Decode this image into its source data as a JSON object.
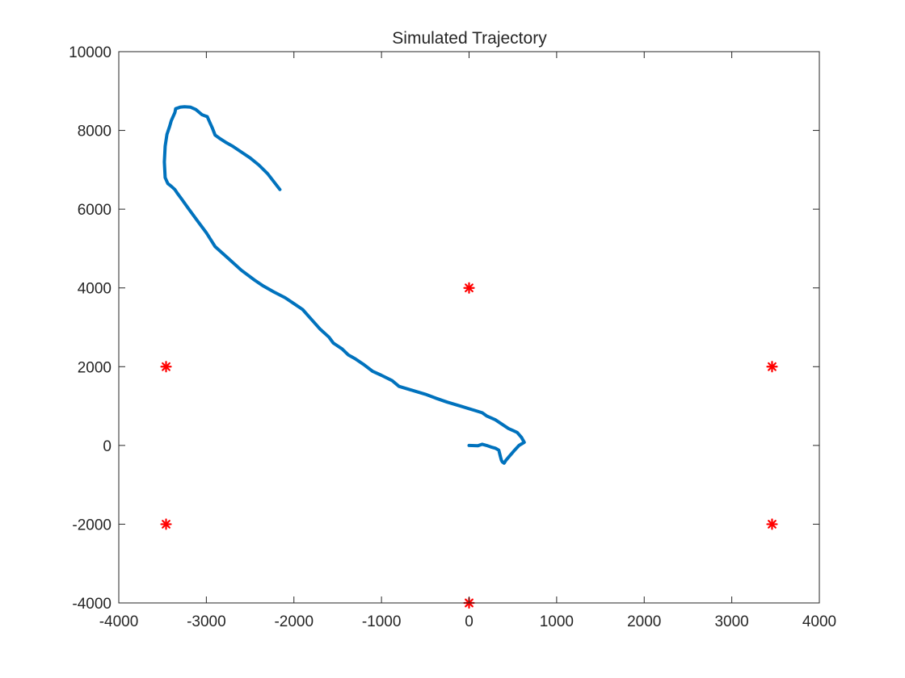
{
  "chart_data": {
    "type": "line",
    "title": "Simulated Trajectory",
    "xlabel": "",
    "ylabel": "",
    "xlim": [
      -4000,
      4000
    ],
    "ylim": [
      -4000,
      10000
    ],
    "xticks": [
      -4000,
      -3000,
      -2000,
      -1000,
      0,
      1000,
      2000,
      3000,
      4000
    ],
    "yticks": [
      -4000,
      -2000,
      0,
      2000,
      4000,
      6000,
      8000,
      10000
    ],
    "grid": false,
    "series": [
      {
        "kind": "line",
        "color": "#0072BD",
        "x": [
          0,
          100,
          150,
          200,
          250,
          300,
          340,
          360,
          370,
          380,
          400,
          420,
          470,
          520,
          570,
          630,
          600,
          550,
          500,
          450,
          300,
          200,
          150,
          50,
          -100,
          -250,
          -380,
          -500,
          -650,
          -800,
          -880,
          -1000,
          -1100,
          -1200,
          -1300,
          -1380,
          -1450,
          -1550,
          -1600,
          -1700,
          -1800,
          -1900,
          -2000,
          -2100,
          -2230,
          -2350,
          -2450,
          -2600,
          -2750,
          -2900,
          -3000,
          -3100,
          -3200,
          -3280,
          -3330,
          -3360,
          -3400,
          -3440,
          -3470,
          -3480,
          -3470,
          -3450,
          -3420,
          -3400,
          -3380,
          -3360,
          -3350,
          -3300,
          -3250,
          -3180,
          -3120,
          -3050,
          -2990,
          -2960,
          -2930,
          -2900,
          -2850,
          -2780,
          -2700,
          -2600,
          -2500,
          -2400,
          -2300,
          -2160
        ],
        "y": [
          0,
          -10,
          30,
          0,
          -40,
          -70,
          -120,
          -300,
          -380,
          -420,
          -450,
          -380,
          -250,
          -120,
          0,
          80,
          200,
          330,
          380,
          430,
          650,
          750,
          830,
          900,
          1000,
          1100,
          1200,
          1300,
          1400,
          1500,
          1650,
          1780,
          1880,
          2050,
          2200,
          2300,
          2450,
          2600,
          2750,
          2950,
          3200,
          3450,
          3600,
          3750,
          3900,
          4050,
          4200,
          4450,
          4750,
          5050,
          5400,
          5700,
          6000,
          6250,
          6400,
          6500,
          6580,
          6650,
          6800,
          7200,
          7600,
          7900,
          8100,
          8250,
          8350,
          8450,
          8550,
          8590,
          8600,
          8590,
          8530,
          8400,
          8350,
          8200,
          8050,
          7880,
          7800,
          7700,
          7600,
          7450,
          7300,
          7120,
          6900,
          6500
        ]
      },
      {
        "kind": "markers",
        "marker": "asterisk",
        "color": "#FF0000",
        "x": [
          0,
          3460,
          3460,
          0,
          -3460,
          -3460
        ],
        "y": [
          4000,
          2000,
          -2000,
          -4000,
          -2000,
          2000
        ]
      }
    ]
  }
}
